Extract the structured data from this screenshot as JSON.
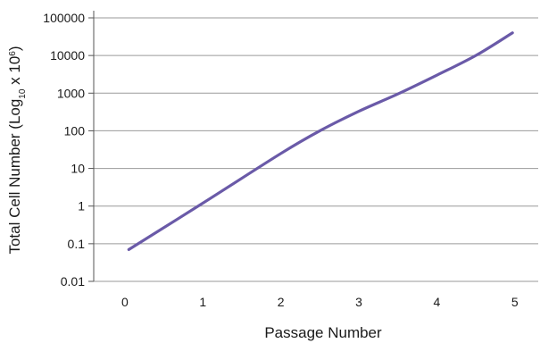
{
  "chart_data": {
    "type": "line",
    "title": "",
    "xlabel": "Passage Number",
    "ylabel_parts": {
      "prefix": "Total Cell Number (Log",
      "sub": "10",
      "middle": " x 10",
      "sup": "6",
      "suffix": ")"
    },
    "yscale": "log",
    "ylim": [
      0.01,
      100000
    ],
    "xlim": [
      -0.4,
      5.3
    ],
    "y_ticks": [
      {
        "value": 0.01,
        "label": "0.01"
      },
      {
        "value": 0.1,
        "label": "0.1"
      },
      {
        "value": 1,
        "label": "1"
      },
      {
        "value": 10,
        "label": "10"
      },
      {
        "value": 100,
        "label": "100"
      },
      {
        "value": 1000,
        "label": "1000"
      },
      {
        "value": 10000,
        "label": "10000"
      },
      {
        "value": 100000,
        "label": "100000"
      }
    ],
    "x_ticks": [
      {
        "value": 0,
        "label": "0"
      },
      {
        "value": 1,
        "label": "1"
      },
      {
        "value": 2,
        "label": "2"
      },
      {
        "value": 3,
        "label": "3"
      },
      {
        "value": 4,
        "label": "4"
      },
      {
        "value": 5,
        "label": "5"
      }
    ],
    "grid": true,
    "series": [
      {
        "color": "#6a5aa8",
        "x": [
          0.05,
          1,
          2,
          2.5,
          3,
          3.5,
          4,
          4.5,
          4.97
        ],
        "y": [
          0.07,
          1.2,
          25,
          100,
          330,
          950,
          3000,
          10000,
          40000
        ]
      }
    ]
  }
}
